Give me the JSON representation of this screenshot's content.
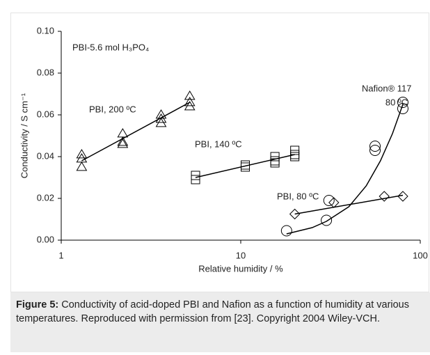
{
  "chart_data": {
    "type": "scatter",
    "annotations": [
      "PBI-5.6 mol H₃PO₄",
      "80 ºC"
    ],
    "xlabel": "Relative humidity / %",
    "ylabel": "Conductivity / S cm⁻¹",
    "xscale": "log",
    "xlim": [
      1,
      100
    ],
    "xticks": [
      1,
      10,
      100
    ],
    "ylim": [
      0,
      0.1
    ],
    "yticks": [
      {
        "value": 0,
        "label": "0.00"
      },
      0.02,
      0.04,
      0.06,
      0.08,
      {
        "value": 0.1,
        "label": "0.10"
      }
    ],
    "series": [
      {
        "name": "PBI, 200 ºC",
        "color": "#000000",
        "marker": "triangle",
        "x": [
          1.3,
          1.3,
          1.3,
          2.2,
          2.2,
          2.2,
          3.6,
          3.6,
          3.6,
          5.2,
          5.2,
          5.2
        ],
        "values": [
          0.041,
          0.039,
          0.035,
          0.051,
          0.047,
          0.046,
          0.06,
          0.058,
          0.056,
          0.069,
          0.066,
          0.064
        ],
        "fit": {
          "x": [
            1.3,
            5.2
          ],
          "values": [
            0.038,
            0.066
          ]
        }
      },
      {
        "name": "PBI, 140 ºC",
        "color": "#000000",
        "marker": "square",
        "x": [
          5.6,
          5.6,
          10.6,
          10.6,
          15.5,
          15.5,
          15.5,
          20,
          20,
          20
        ],
        "values": [
          0.031,
          0.029,
          0.036,
          0.035,
          0.04,
          0.038,
          0.037,
          0.043,
          0.041,
          0.04
        ],
        "fit": {
          "x": [
            5.6,
            20
          ],
          "values": [
            0.03,
            0.041
          ]
        }
      },
      {
        "name": "PBI, 80 ºC",
        "color": "#000000",
        "marker": "diamond",
        "x": [
          20,
          33,
          63,
          80
        ],
        "values": [
          0.0125,
          0.018,
          0.021,
          0.021
        ],
        "fit": {
          "x": [
            20,
            80
          ],
          "values": [
            0.0125,
            0.0215
          ]
        }
      },
      {
        "name": "Nafion® 117",
        "color": "#000000",
        "marker": "circle",
        "x": [
          18,
          30,
          31,
          56,
          56,
          80,
          80
        ],
        "values": [
          0.0045,
          0.0095,
          0.019,
          0.045,
          0.043,
          0.066,
          0.063
        ],
        "fit": {
          "x": [
            18,
            25,
            30,
            40,
            50,
            60,
            70,
            80
          ],
          "values": [
            0.003,
            0.006,
            0.009,
            0.016,
            0.026,
            0.038,
            0.051,
            0.065
          ]
        }
      }
    ]
  },
  "caption": {
    "label": "Figure 5:",
    "text": "Conductivity of acid-doped PBI and Nafion as a function of humidity at various temperatures. Reproduced with permission from [23]. Copyright 2004 Wiley-VCH."
  }
}
